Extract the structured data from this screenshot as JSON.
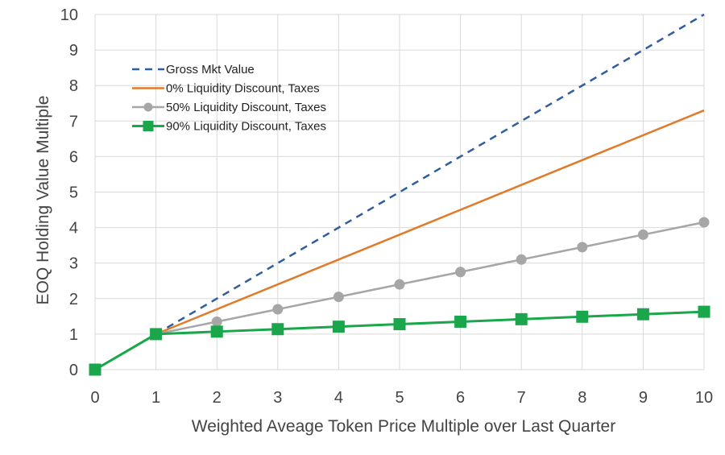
{
  "chart_data": {
    "type": "line",
    "title": "",
    "xlabel": "Weighted Aveage Token Price Multiple over Last Quarter",
    "ylabel": "EOQ Holding Value Multiple",
    "xlim": [
      0,
      10
    ],
    "ylim": [
      0,
      10
    ],
    "xticks": [
      "0",
      "1",
      "2",
      "3",
      "4",
      "5",
      "6",
      "7",
      "8",
      "9",
      "10"
    ],
    "yticks": [
      "0",
      "1",
      "2",
      "3",
      "4",
      "5",
      "6",
      "7",
      "8",
      "9",
      "10"
    ],
    "grid": true,
    "legend_position": "top-left",
    "series": [
      {
        "name": "Gross Mkt Value",
        "color": "#2e5e9e",
        "style": "dashed",
        "marker": "none",
        "x": [
          1,
          10
        ],
        "y": [
          1,
          10
        ]
      },
      {
        "name": "0% Liquidity Discount, Taxes",
        "color": "#e07b2a",
        "style": "solid",
        "marker": "none",
        "x": [
          1,
          10
        ],
        "y": [
          1,
          7.3
        ]
      },
      {
        "name": "50% Liquidity Discount, Taxes",
        "color": "#a6a6a6",
        "style": "solid",
        "marker": "circle",
        "x": [
          1,
          2,
          3,
          4,
          5,
          6,
          7,
          8,
          9,
          10
        ],
        "y": [
          1,
          1.35,
          1.7,
          2.05,
          2.4,
          2.75,
          3.1,
          3.45,
          3.8,
          4.15
        ]
      },
      {
        "name": "90% Liquidity Discount, Taxes",
        "color": "#1aa64a",
        "style": "solid",
        "marker": "square",
        "x": [
          0,
          1,
          2,
          3,
          4,
          5,
          6,
          7,
          8,
          9,
          10
        ],
        "y": [
          0,
          1,
          1.07,
          1.14,
          1.21,
          1.28,
          1.35,
          1.42,
          1.49,
          1.56,
          1.63
        ]
      }
    ]
  }
}
